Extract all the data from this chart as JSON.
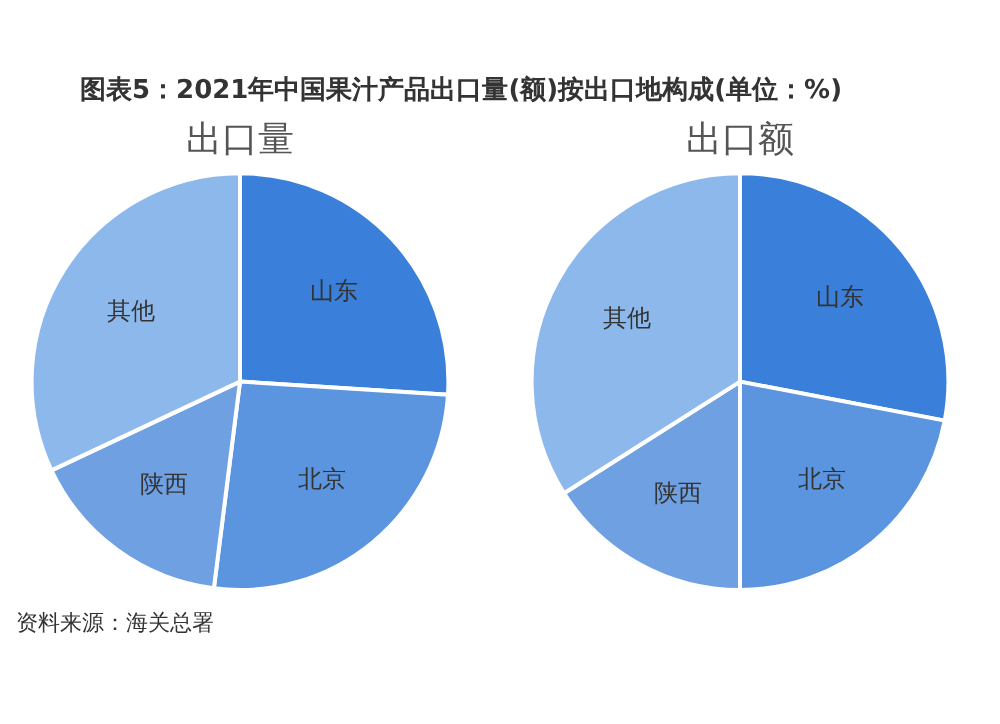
{
  "chart_data": [
    {
      "type": "pie",
      "title": "出口量",
      "annotations": [
        "图表5：2021年中国果汁产品出口量(额)按出口地构成(单位：%)"
      ],
      "categories": [
        "山东",
        "北京",
        "陕西",
        "其他"
      ],
      "values": [
        26,
        26,
        16,
        32
      ],
      "colors": [
        "#3a7fd9",
        "#5b95e0",
        "#6fa0e2",
        "#8db8ec"
      ],
      "legend": false
    },
    {
      "type": "pie",
      "title": "出口额",
      "annotations": [
        "资料来源：海关总署"
      ],
      "categories": [
        "山东",
        "北京",
        "陕西",
        "其他"
      ],
      "values": [
        28,
        22,
        16,
        34
      ],
      "colors": [
        "#3a7fd9",
        "#5b95e0",
        "#6fa0e2",
        "#8db8ec"
      ],
      "legend": false
    }
  ]
}
